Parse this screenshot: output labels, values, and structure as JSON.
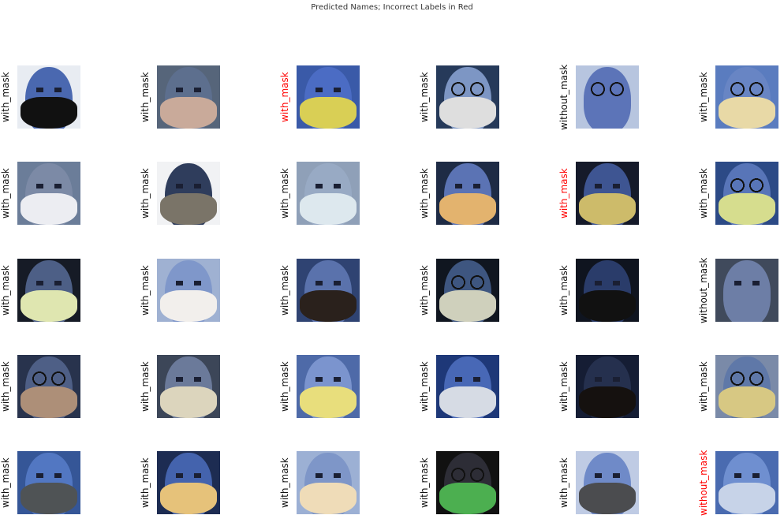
{
  "title": "Predicted Names; Incorrect Labels in Red",
  "colors": {
    "correct": "#111111",
    "incorrect": "#ff0000"
  },
  "rows": [
    [
      {
        "label": "with_mask",
        "incorrect": false,
        "bg": "#e8ecf2",
        "skin": "#4a68b0",
        "mask": "#111111",
        "glasses": false
      },
      {
        "label": "with_mask",
        "incorrect": false,
        "bg": "#56657a",
        "skin": "#5d6f8e",
        "mask": "#c9aa9a",
        "glasses": false
      },
      {
        "label": "with_mask",
        "incorrect": true,
        "bg": "#3a5aa8",
        "skin": "#4b6cc4",
        "mask": "#d9cf55",
        "glasses": false
      },
      {
        "label": "with_mask",
        "incorrect": false,
        "bg": "#263a5a",
        "skin": "#7d96c4",
        "mask": "#dedede",
        "glasses": true
      },
      {
        "label": "without_mask",
        "incorrect": false,
        "bg": "#b7c5df",
        "skin": "#5c74b8",
        "mask": "",
        "glasses": true
      },
      {
        "label": "with_mask",
        "incorrect": false,
        "bg": "#5a7cbf",
        "skin": "#6885c4",
        "mask": "#e8d9a6",
        "glasses": true
      }
    ],
    [
      {
        "label": "with_mask",
        "incorrect": false,
        "bg": "#6b7d99",
        "skin": "#7c8aa6",
        "mask": "#ecedf2",
        "glasses": false
      },
      {
        "label": "with_mask",
        "incorrect": false,
        "bg": "#f1f2f4",
        "skin": "#2f3d5c",
        "mask": "#7a7468",
        "glasses": false
      },
      {
        "label": "with_mask",
        "incorrect": false,
        "bg": "#8fa0b8",
        "skin": "#98aac4",
        "mask": "#dde8ee",
        "glasses": false
      },
      {
        "label": "with_mask",
        "incorrect": false,
        "bg": "#1e2b45",
        "skin": "#5b73b4",
        "mask": "#e3b36e",
        "glasses": false
      },
      {
        "label": "with_mask",
        "incorrect": true,
        "bg": "#151a2a",
        "skin": "#3e5592",
        "mask": "#cdbb6a",
        "glasses": false
      },
      {
        "label": "with_mask",
        "incorrect": false,
        "bg": "#2c4a86",
        "skin": "#5875b8",
        "mask": "#d6dd8e",
        "glasses": true
      }
    ],
    [
      {
        "label": "with_mask",
        "incorrect": false,
        "bg": "#161b26",
        "skin": "#4d5f86",
        "mask": "#dfe6b0",
        "glasses": false
      },
      {
        "label": "with_mask",
        "incorrect": false,
        "bg": "#9fb1d2",
        "skin": "#7f97ca",
        "mask": "#f2efec",
        "glasses": false
      },
      {
        "label": "with_mask",
        "incorrect": false,
        "bg": "#2f4372",
        "skin": "#5a72ac",
        "mask": "#2a211c",
        "glasses": false
      },
      {
        "label": "with_mask",
        "incorrect": false,
        "bg": "#101620",
        "skin": "#3e5680",
        "mask": "#cfd0bc",
        "glasses": true
      },
      {
        "label": "with_mask",
        "incorrect": false,
        "bg": "#0f141f",
        "skin": "#2a3c6a",
        "mask": "#111111",
        "glasses": false
      },
      {
        "label": "without_mask",
        "incorrect": false,
        "bg": "#404a5c",
        "skin": "#6d7ea6",
        "mask": "",
        "glasses": false
      }
    ],
    [
      {
        "label": "with_mask",
        "incorrect": false,
        "bg": "#28334d",
        "skin": "#4e5f86",
        "mask": "#ad8f78",
        "glasses": true
      },
      {
        "label": "with_mask",
        "incorrect": false,
        "bg": "#3c4658",
        "skin": "#6b7a9a",
        "mask": "#dcd5bd",
        "glasses": false
      },
      {
        "label": "with_mask",
        "incorrect": false,
        "bg": "#4e6aa8",
        "skin": "#7b94ce",
        "mask": "#e8de7c",
        "glasses": false
      },
      {
        "label": "with_mask",
        "incorrect": false,
        "bg": "#1e3878",
        "skin": "#4868b6",
        "mask": "#d6dbe4",
        "glasses": false
      },
      {
        "label": "with_mask",
        "incorrect": false,
        "bg": "#151d34",
        "skin": "#25304e",
        "mask": "#15110f",
        "glasses": false
      },
      {
        "label": "with_mask",
        "incorrect": false,
        "bg": "#7a8aa8",
        "skin": "#5f78a8",
        "mask": "#d7c883",
        "glasses": true
      }
    ],
    [
      {
        "label": "with_mask",
        "incorrect": false,
        "bg": "#355697",
        "skin": "#5277c2",
        "mask": "#4f5355",
        "glasses": false
      },
      {
        "label": "with_mask",
        "incorrect": false,
        "bg": "#1d2c52",
        "skin": "#4463ad",
        "mask": "#e6c27a",
        "glasses": false
      },
      {
        "label": "with_mask",
        "incorrect": false,
        "bg": "#9cb0d4",
        "skin": "#7e96c8",
        "mask": "#efdcb8",
        "glasses": false
      },
      {
        "label": "with_mask",
        "incorrect": false,
        "bg": "#111111",
        "skin": "#2d2d36",
        "mask": "#4caf50",
        "glasses": true
      },
      {
        "label": "with_mask",
        "incorrect": false,
        "bg": "#bfcbe4",
        "skin": "#6f8ac8",
        "mask": "#4b4c4f",
        "glasses": false
      },
      {
        "label": "without_mask",
        "incorrect": true,
        "bg": "#4a6bb0",
        "skin": "#6f8fd0",
        "mask": "#c7d3e8",
        "glasses": false
      }
    ]
  ]
}
